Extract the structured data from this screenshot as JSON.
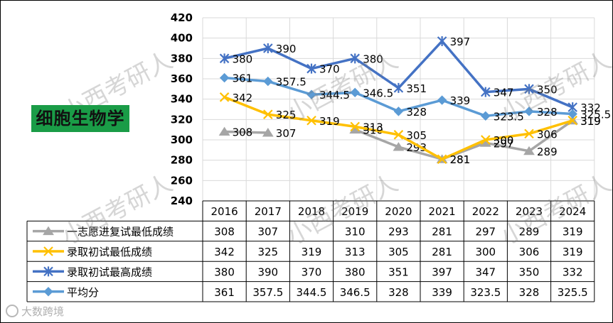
{
  "badge_text": "细胞生物学",
  "watermark": "小西考研人",
  "footer_text": "大数跨境",
  "colors": {
    "grid": "#d9d9d9",
    "border": "#000000",
    "text": "#000000",
    "badge_bg": "#1a9c47"
  },
  "chart_data": {
    "type": "line",
    "title": "",
    "xlabel": "",
    "ylabel": "",
    "ylim": [
      240,
      420
    ],
    "yticks": [
      240,
      260,
      280,
      300,
      320,
      340,
      360,
      380,
      400,
      420
    ],
    "categories": [
      "2016",
      "2017",
      "2018",
      "2019",
      "2020",
      "2021",
      "2022",
      "2023",
      "2024"
    ],
    "grid": true,
    "legend": "data table below plot",
    "series": [
      {
        "name": "一志愿进复试最低成绩",
        "color": "#a6a6a6",
        "marker": "triangle",
        "values": [
          308,
          307,
          null,
          310,
          293,
          281,
          297,
          289,
          319
        ]
      },
      {
        "name": "录取初试最低成绩",
        "color": "#ffc000",
        "marker": "x",
        "values": [
          342,
          325,
          319,
          313,
          305,
          281,
          300,
          306,
          319
        ]
      },
      {
        "name": "录取初试最高成绩",
        "color": "#4472c4",
        "marker": "star",
        "values": [
          380,
          390,
          370,
          380,
          351,
          397,
          347,
          350,
          332
        ]
      },
      {
        "name": "平均分",
        "color": "#5b9bd5",
        "marker": "diamond",
        "values": [
          361,
          357.5,
          344.5,
          346.5,
          328,
          339,
          323.5,
          328,
          325.5
        ]
      }
    ]
  }
}
